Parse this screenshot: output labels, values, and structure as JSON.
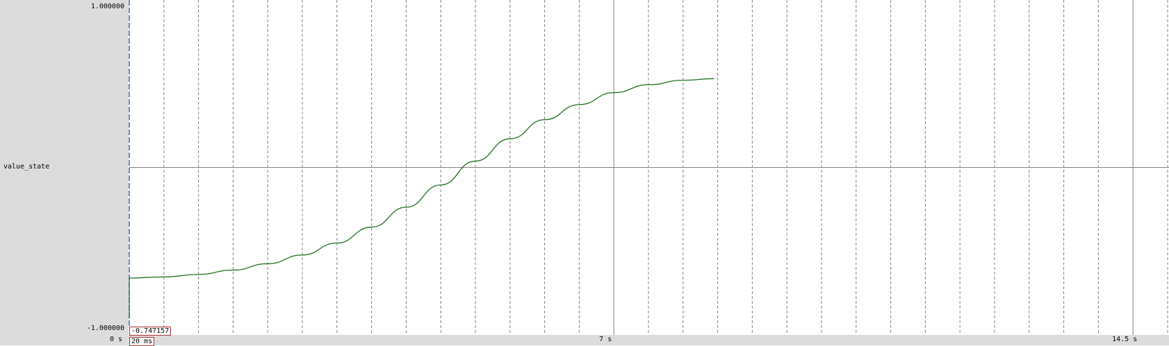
{
  "signal": {
    "name": "value_state"
  },
  "y_axis": {
    "max_label": "1.000000",
    "min_label": "-1.000000"
  },
  "x_axis": {
    "ticks": [
      {
        "t": 0,
        "label": "0 s"
      },
      {
        "t": 7,
        "label": "7 s"
      },
      {
        "t": 14.5,
        "label": "14.5 s"
      }
    ]
  },
  "cursor": {
    "value": "-0.747157",
    "time": "20 ms"
  },
  "colors": {
    "trace": "#1f6f1f",
    "grid": "#808080",
    "cursor": "#3a5fcd",
    "panel": "#dcdcdc"
  },
  "chart_data": {
    "type": "line",
    "title": "",
    "xlabel": "",
    "ylabel": "value_state",
    "xlim": [
      0,
      15
    ],
    "ylim": [
      -1,
      1
    ],
    "grid": true,
    "series": [
      {
        "name": "value_state",
        "x": [
          0,
          0.5,
          1,
          1.5,
          2,
          2.5,
          3,
          3.5,
          4,
          4.5,
          5,
          5.5,
          6,
          6.5,
          7,
          7.5,
          8,
          8.45
        ],
        "y": [
          -0.695,
          -0.688,
          -0.672,
          -0.645,
          -0.605,
          -0.55,
          -0.475,
          -0.375,
          -0.25,
          -0.11,
          0.04,
          0.18,
          0.3,
          0.395,
          0.47,
          0.52,
          0.548,
          0.558
        ]
      }
    ]
  }
}
